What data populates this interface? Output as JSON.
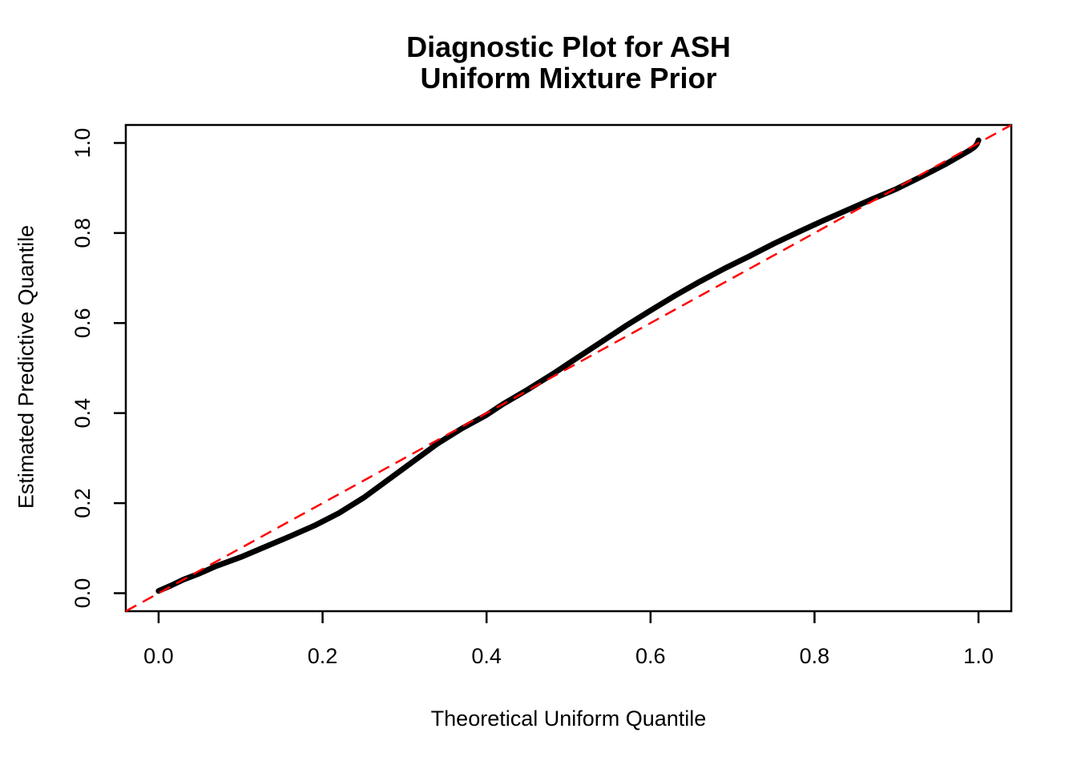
{
  "figure": {
    "title_line1": "Diagnostic Plot for ASH",
    "title_line2": "Uniform Mixture Prior",
    "xlabel": "Theoretical Uniform Quantile",
    "ylabel": "Estimated Predictive Quantile"
  },
  "colors": {
    "background": "#FFFFFF",
    "axis": "#000000",
    "curve": "#000000",
    "reference": "#FF0000"
  },
  "chart_data": {
    "type": "line",
    "title": "Diagnostic Plot for ASH\nUniform Mixture Prior",
    "xlabel": "Theoretical Uniform Quantile",
    "ylabel": "Estimated Predictive Quantile",
    "xlim": [
      -0.04,
      1.04
    ],
    "ylim": [
      -0.04,
      1.04
    ],
    "x_ticks": [
      0.0,
      0.2,
      0.4,
      0.6,
      0.8,
      1.0
    ],
    "y_ticks": [
      0.0,
      0.2,
      0.4,
      0.6,
      0.8,
      1.0
    ],
    "x_tick_labels": [
      "0.0",
      "0.2",
      "0.4",
      "0.6",
      "0.8",
      "1.0"
    ],
    "y_tick_labels": [
      "0.0",
      "0.2",
      "0.4",
      "0.6",
      "0.8",
      "1.0"
    ],
    "grid": false,
    "legend": null,
    "series": [
      {
        "name": "estimated-predictive-quantile-curve",
        "color": "#000000",
        "style": "solid",
        "stroke_width": 7,
        "points": [
          [
            0.0,
            0.005
          ],
          [
            0.015,
            0.017
          ],
          [
            0.03,
            0.03
          ],
          [
            0.05,
            0.044
          ],
          [
            0.07,
            0.06
          ],
          [
            0.1,
            0.08
          ],
          [
            0.13,
            0.103
          ],
          [
            0.16,
            0.126
          ],
          [
            0.19,
            0.15
          ],
          [
            0.22,
            0.178
          ],
          [
            0.25,
            0.212
          ],
          [
            0.28,
            0.252
          ],
          [
            0.31,
            0.292
          ],
          [
            0.34,
            0.332
          ],
          [
            0.37,
            0.366
          ],
          [
            0.4,
            0.396
          ],
          [
            0.42,
            0.42
          ],
          [
            0.45,
            0.452
          ],
          [
            0.48,
            0.486
          ],
          [
            0.51,
            0.522
          ],
          [
            0.54,
            0.558
          ],
          [
            0.57,
            0.594
          ],
          [
            0.6,
            0.628
          ],
          [
            0.63,
            0.661
          ],
          [
            0.66,
            0.692
          ],
          [
            0.69,
            0.721
          ],
          [
            0.72,
            0.748
          ],
          [
            0.75,
            0.776
          ],
          [
            0.78,
            0.802
          ],
          [
            0.81,
            0.827
          ],
          [
            0.84,
            0.851
          ],
          [
            0.87,
            0.875
          ],
          [
            0.9,
            0.898
          ],
          [
            0.93,
            0.925
          ],
          [
            0.96,
            0.953
          ],
          [
            0.98,
            0.974
          ],
          [
            0.99,
            0.9845
          ],
          [
            0.995,
            0.991
          ],
          [
            0.998,
            0.997
          ],
          [
            1.0,
            1.006
          ]
        ]
      },
      {
        "name": "reference-line-y-equals-x",
        "color": "#FF0000",
        "style": "dashed",
        "stroke_width": 2.5,
        "points": [
          [
            -0.04,
            -0.04
          ],
          [
            1.04,
            1.04
          ]
        ]
      }
    ]
  }
}
